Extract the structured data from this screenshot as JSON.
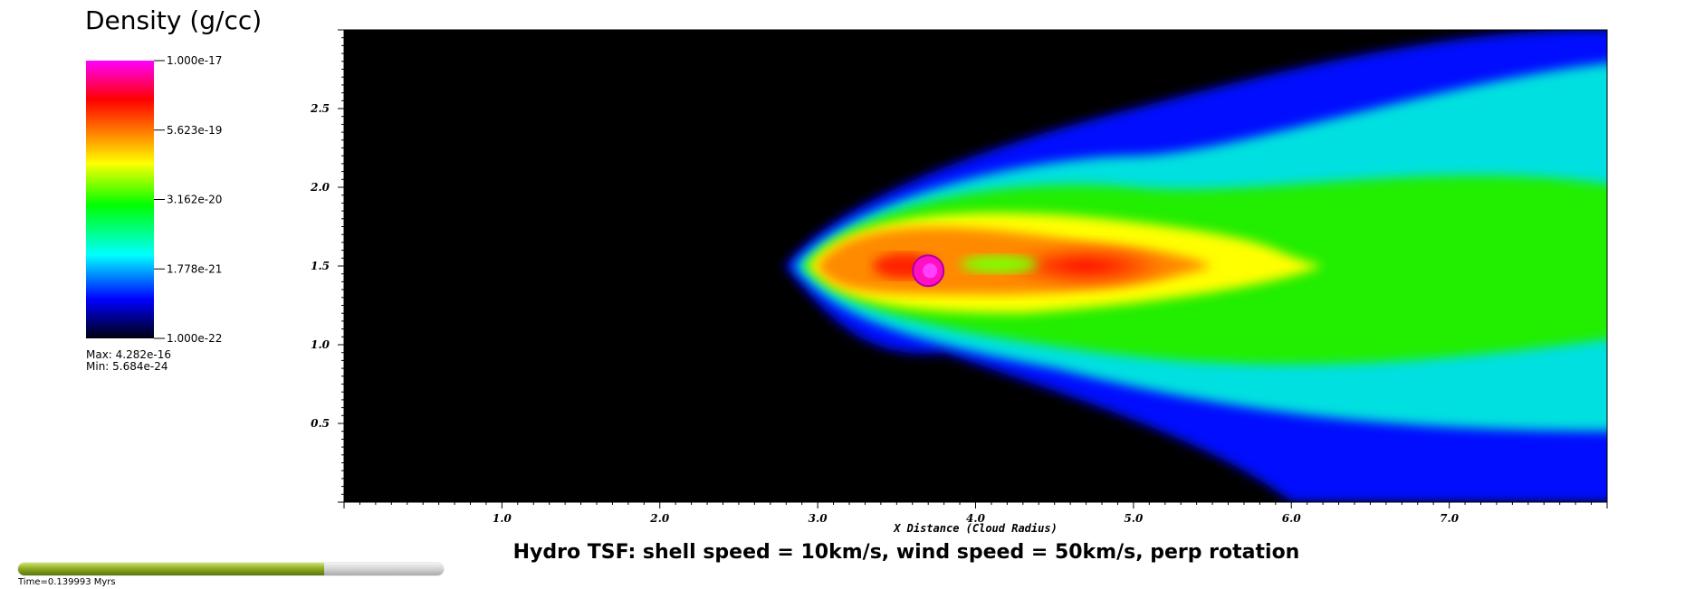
{
  "legend": {
    "title": "Density (g/cc)",
    "ticks": [
      "1.000e-17",
      "5.623e-19",
      "3.162e-20",
      "1.778e-21",
      "1.000e-22"
    ],
    "max_label": "Max:  4.282e-16",
    "min_label": "Min:  5.684e-24"
  },
  "caption": "Hydro TSF: shell speed = 10km/s, wind speed = 50km/s, perp rotation",
  "time": {
    "label": "Time=0.139993 Myrs",
    "progress": 0.72
  },
  "colors": {
    "background": "#000000",
    "colormap": [
      "#000010",
      "#0000ff",
      "#00ffff",
      "#00ff00",
      "#ffff00",
      "#ff8000",
      "#ff0000",
      "#ff00ff"
    ]
  },
  "chart_data": {
    "type": "heatmap",
    "title": "",
    "xlabel": "X Distance (Cloud Radius)",
    "ylabel": "",
    "x_ticks": [
      "1.0",
      "2.0",
      "3.0",
      "4.0",
      "5.0",
      "6.0",
      "7.0"
    ],
    "y_ticks": [
      "0.5",
      "1.0",
      "1.5",
      "2.0",
      "2.5"
    ],
    "xlim": [
      0,
      8.0
    ],
    "ylim": [
      0,
      3.0
    ],
    "features": {
      "plume_start_x": 2.85,
      "plume_axis_y": 1.5,
      "cloud_center": [
        3.7,
        1.47
      ],
      "dense_core_x": 4.7
    }
  }
}
